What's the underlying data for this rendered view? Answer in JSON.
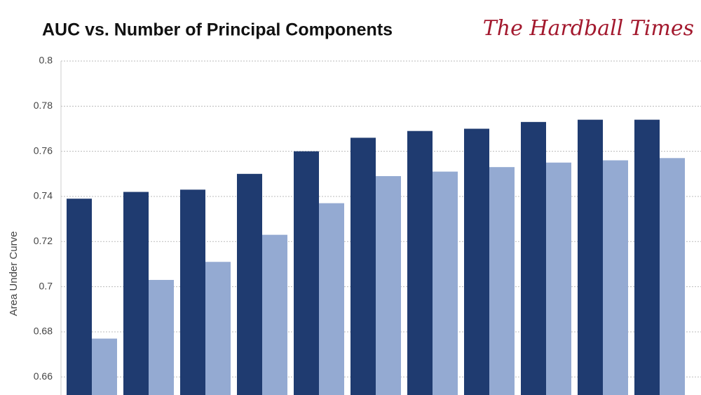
{
  "chart_data": {
    "type": "bar",
    "title": "AUC vs. Number of Principal Components",
    "logo": "The Hardball Times",
    "ylabel": "Area Under Curve",
    "categories": [
      null,
      null,
      null,
      null,
      null,
      null,
      null,
      null,
      null,
      null,
      null
    ],
    "series": [
      {
        "color": "#1f3b70",
        "values": [
          0.739,
          0.742,
          0.743,
          0.75,
          0.76,
          0.766,
          0.769,
          0.77,
          0.773,
          0.774,
          0.774
        ]
      },
      {
        "color": "#94aad2",
        "values": [
          0.677,
          0.703,
          0.711,
          0.723,
          0.737,
          0.749,
          0.751,
          0.753,
          0.755,
          0.756,
          0.757
        ]
      }
    ],
    "ylim": [
      0.652,
      0.8
    ],
    "yticks": [
      0.66,
      0.68,
      0.7,
      0.72,
      0.74,
      0.76,
      0.78,
      0.8
    ],
    "grid": true
  }
}
